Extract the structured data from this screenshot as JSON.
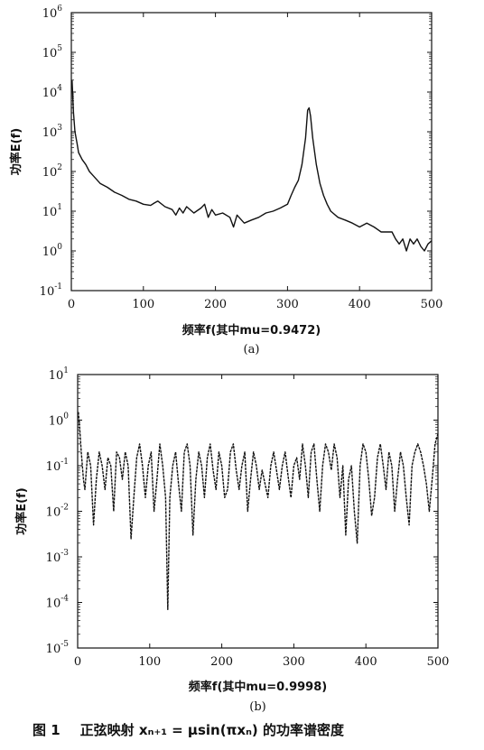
{
  "chart_data": [
    {
      "type": "line",
      "panel_label": "(a)",
      "xlabel": "频率f(其中mu=0.9472)",
      "ylabel": "功率E(f)",
      "xlim": [
        0,
        500
      ],
      "ylim_exp": [
        -1,
        6
      ],
      "y_scale": "log10",
      "x_ticks": [
        "0",
        "100",
        "200",
        "300",
        "400",
        "500"
      ],
      "y_ticks_exponent": [
        "-1",
        "0",
        "1",
        "2",
        "3",
        "4",
        "5",
        "6"
      ],
      "grid": false,
      "series": [
        {
          "x": [
            1,
            3,
            5,
            8,
            10,
            15,
            20,
            25,
            30,
            40,
            50,
            60,
            70,
            80,
            90,
            100,
            110,
            115,
            120,
            130,
            140,
            145,
            150,
            155,
            160,
            170,
            180,
            185,
            190,
            195,
            200,
            210,
            220,
            225,
            230,
            240,
            250,
            260,
            270,
            280,
            290,
            300,
            305,
            310,
            315,
            320,
            325,
            328,
            330,
            332,
            335,
            340,
            345,
            350,
            355,
            360,
            370,
            380,
            390,
            400,
            410,
            420,
            430,
            440,
            445,
            450,
            455,
            460,
            465,
            470,
            475,
            480,
            485,
            490,
            495,
            500
          ],
          "y": [
            20000,
            3000,
            1000,
            500,
            300,
            200,
            150,
            100,
            80,
            50,
            40,
            30,
            25,
            20,
            18,
            15,
            14,
            16,
            18,
            13,
            11,
            8,
            12,
            9,
            13,
            9,
            12,
            15,
            7,
            11,
            8,
            9,
            7,
            4,
            8,
            5,
            6,
            7,
            9,
            10,
            12,
            15,
            25,
            40,
            60,
            150,
            700,
            3500,
            4000,
            2500,
            700,
            150,
            50,
            25,
            15,
            10,
            7,
            6,
            5,
            4,
            5,
            4,
            3,
            3,
            3,
            2,
            1.5,
            2,
            1,
            2,
            1.5,
            2,
            1.3,
            1,
            1.5,
            1.8
          ]
        }
      ]
    },
    {
      "type": "line",
      "panel_label": "(b)",
      "xlabel": "频率f(其中mu=0.9998)",
      "ylabel": "功率E(f)",
      "xlim": [
        0,
        500
      ],
      "ylim_exp": [
        -5,
        1
      ],
      "y_scale": "log10",
      "x_ticks": [
        "0",
        "100",
        "200",
        "300",
        "400",
        "500"
      ],
      "y_ticks_exponent": [
        "-5",
        "-4",
        "-3",
        "-2",
        "-1",
        "0",
        "1"
      ],
      "grid": false,
      "series": [
        {
          "x": [
            1,
            3,
            5,
            8,
            10,
            14,
            18,
            22,
            26,
            30,
            34,
            38,
            42,
            46,
            50,
            54,
            58,
            62,
            66,
            70,
            74,
            78,
            82,
            86,
            90,
            94,
            98,
            102,
            106,
            110,
            114,
            118,
            122,
            125,
            128,
            132,
            136,
            140,
            144,
            148,
            152,
            156,
            160,
            164,
            168,
            172,
            176,
            180,
            184,
            188,
            192,
            196,
            200,
            204,
            208,
            212,
            216,
            220,
            224,
            228,
            232,
            236,
            240,
            244,
            248,
            252,
            256,
            260,
            264,
            268,
            272,
            276,
            280,
            284,
            288,
            292,
            296,
            300,
            304,
            308,
            312,
            316,
            320,
            324,
            328,
            332,
            336,
            340,
            344,
            348,
            352,
            356,
            360,
            364,
            368,
            372,
            376,
            380,
            384,
            388,
            392,
            396,
            400,
            404,
            408,
            412,
            416,
            420,
            424,
            428,
            432,
            436,
            440,
            444,
            448,
            452,
            456,
            460,
            464,
            468,
            472,
            476,
            480,
            484,
            488,
            492,
            496,
            500
          ],
          "y": [
            1.5,
            0.6,
            0.2,
            0.05,
            0.03,
            0.2,
            0.1,
            0.005,
            0.05,
            0.2,
            0.1,
            0.03,
            0.15,
            0.1,
            0.01,
            0.2,
            0.15,
            0.05,
            0.2,
            0.1,
            0.0025,
            0.02,
            0.15,
            0.3,
            0.1,
            0.02,
            0.1,
            0.2,
            0.01,
            0.05,
            0.3,
            0.1,
            0.02,
            7e-05,
            0.02,
            0.1,
            0.2,
            0.04,
            0.01,
            0.2,
            0.3,
            0.1,
            0.003,
            0.05,
            0.2,
            0.1,
            0.02,
            0.15,
            0.3,
            0.08,
            0.03,
            0.2,
            0.1,
            0.02,
            0.03,
            0.2,
            0.3,
            0.08,
            0.03,
            0.1,
            0.2,
            0.01,
            0.05,
            0.2,
            0.1,
            0.03,
            0.08,
            0.04,
            0.02,
            0.1,
            0.2,
            0.08,
            0.03,
            0.1,
            0.2,
            0.06,
            0.02,
            0.1,
            0.15,
            0.05,
            0.3,
            0.1,
            0.02,
            0.2,
            0.3,
            0.05,
            0.01,
            0.1,
            0.3,
            0.2,
            0.08,
            0.3,
            0.15,
            0.02,
            0.1,
            0.003,
            0.05,
            0.1,
            0.01,
            0.002,
            0.1,
            0.3,
            0.2,
            0.05,
            0.008,
            0.02,
            0.15,
            0.3,
            0.1,
            0.03,
            0.2,
            0.1,
            0.01,
            0.05,
            0.2,
            0.1,
            0.02,
            0.005,
            0.1,
            0.2,
            0.3,
            0.2,
            0.1,
            0.04,
            0.01,
            0.05,
            0.3,
            0.5
          ]
        }
      ]
    }
  ],
  "caption": {
    "figure_number": "图 1",
    "text": "正弦映射 xₙ₊₁ = μsin(πxₙ) 的功率谱密度"
  }
}
